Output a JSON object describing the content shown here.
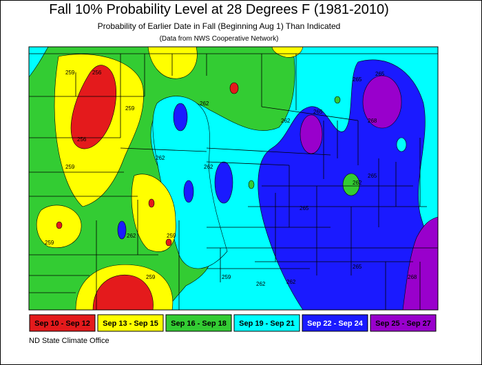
{
  "header": {
    "title": "Fall 10% Probability Level at 28 Degrees F (1981-2010)",
    "subtitle": "Probability of Earlier Date in Fall (Beginning Aug 1) Than Indicated",
    "note": "(Data from NWS Cooperative Network)"
  },
  "legend": [
    {
      "label": "Sep 10 - Sep 12",
      "color": "#e41a1c",
      "text_color": "#000000"
    },
    {
      "label": "Sep 13 - Sep 15",
      "color": "#ffff00",
      "text_color": "#000000"
    },
    {
      "label": "Sep 16 - Sep 18",
      "color": "#33cc33",
      "text_color": "#000000"
    },
    {
      "label": "Sep 19 - Sep 21",
      "color": "#00ffff",
      "text_color": "#000000"
    },
    {
      "label": "Sep 22 - Sep 24",
      "color": "#1a1aff",
      "text_color": "#ffffff"
    },
    {
      "label": "Sep 25 - Sep 27",
      "color": "#9900cc",
      "text_color": "#000000"
    }
  ],
  "contour_labels": [
    "259",
    "256",
    "259",
    "256",
    "259",
    "259",
    "262",
    "259",
    "262",
    "262",
    "259",
    "259",
    "262",
    "262",
    "262",
    "265",
    "265",
    "262",
    "265",
    "268",
    "265",
    "265",
    "262",
    "265",
    "268"
  ],
  "footer": "ND State Climate Office"
}
